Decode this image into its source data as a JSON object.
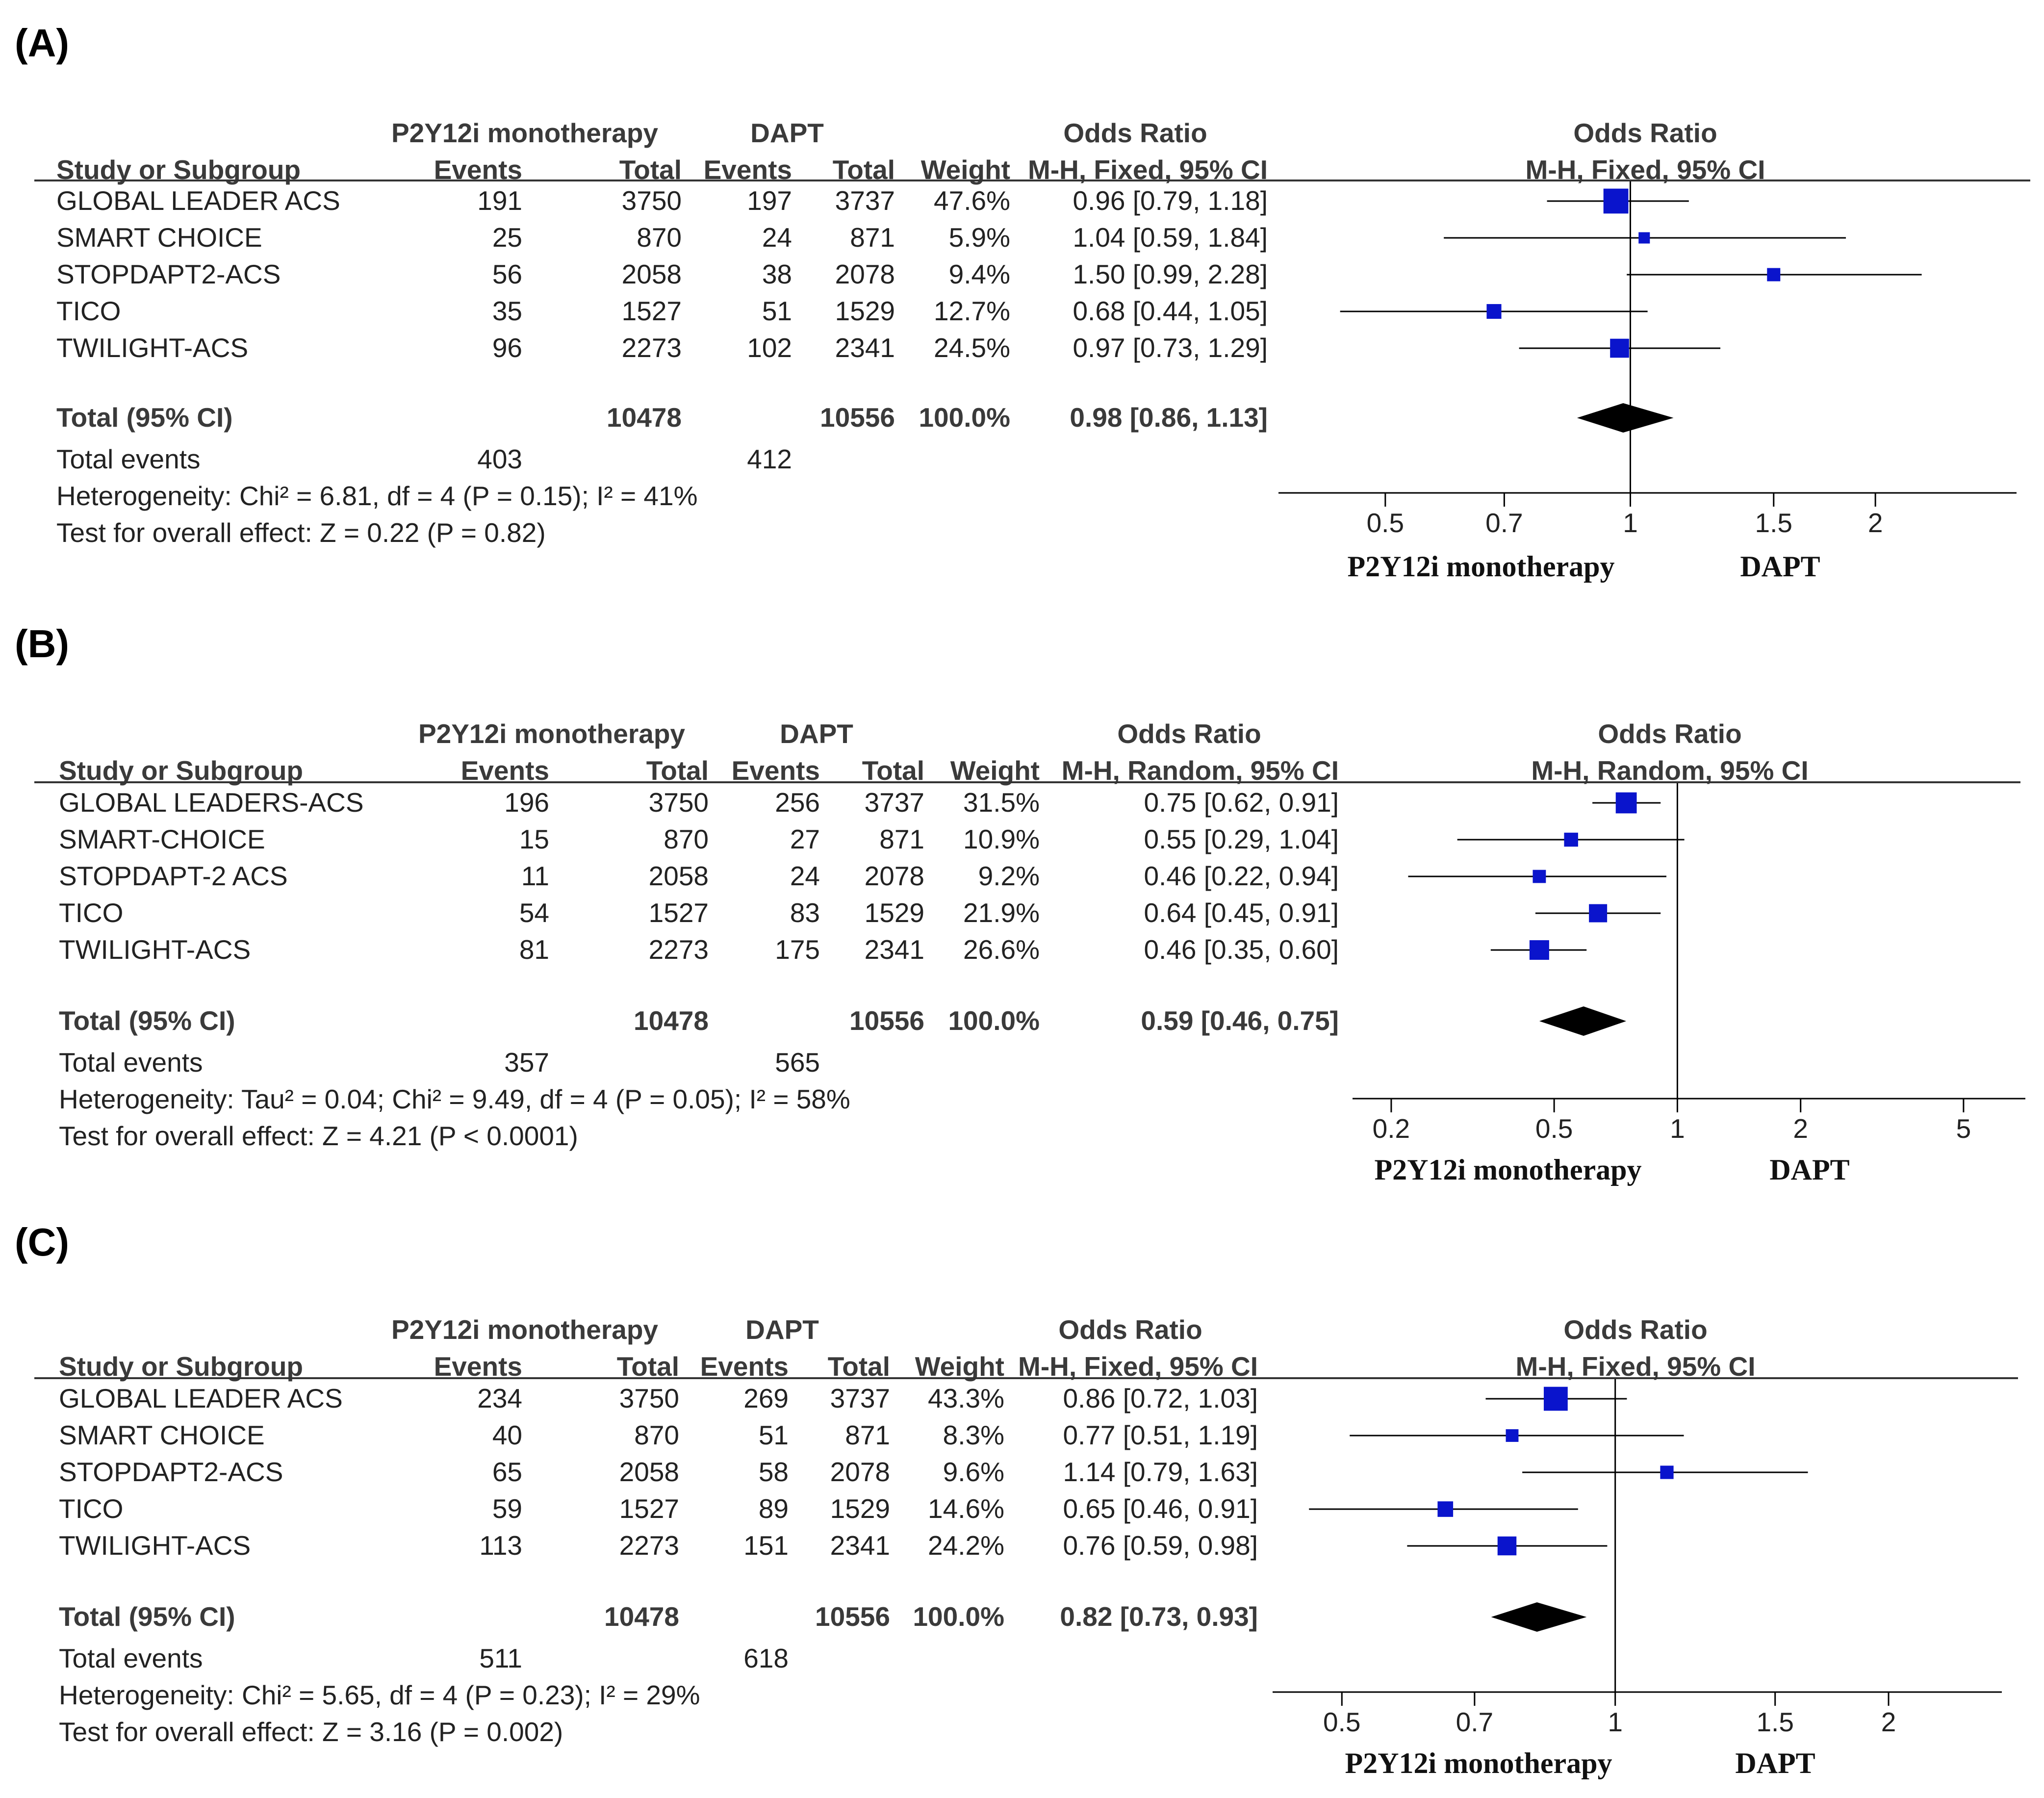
{
  "colors": {
    "marker": "#0a14cc",
    "line": "#000000",
    "text": "#222222"
  },
  "headers": {
    "study": "Study or Subgroup",
    "group1": "P2Y12i monotherapy",
    "group2": "DAPT",
    "events": "Events",
    "total": "Total",
    "weight": "Weight",
    "or": "Odds Ratio",
    "total_row": "Total (95% CI)",
    "total_events": "Total events"
  },
  "chart_data": [
    {
      "type": "forest",
      "panel_label": "(A)",
      "method": "M-H, Fixed, 95% CI",
      "scale": "log",
      "xlim": [
        0.38,
        2.9
      ],
      "ticks": [
        "0.5",
        "0.7",
        "1",
        "1.5",
        "2"
      ],
      "xlabel_left": "P2Y12i monotherapy",
      "xlabel_right": "DAPT",
      "studies": [
        {
          "name": "GLOBAL LEADER ACS",
          "e1": "191",
          "n1": "3750",
          "e2": "197",
          "n2": "3737",
          "weight": "47.6%",
          "or_text": "0.96 [0.79, 1.18]",
          "or": 0.96,
          "lo": 0.79,
          "hi": 1.18,
          "w": 47.6
        },
        {
          "name": "SMART CHOICE",
          "e1": "25",
          "n1": "870",
          "e2": "24",
          "n2": "871",
          "weight": "5.9%",
          "or_text": "1.04 [0.59, 1.84]",
          "or": 1.04,
          "lo": 0.59,
          "hi": 1.84,
          "w": 5.9
        },
        {
          "name": "STOPDAPT2-ACS",
          "e1": "56",
          "n1": "2058",
          "e2": "38",
          "n2": "2078",
          "weight": "9.4%",
          "or_text": "1.50 [0.99, 2.28]",
          "or": 1.5,
          "lo": 0.99,
          "hi": 2.28,
          "w": 9.4
        },
        {
          "name": "TICO",
          "e1": "35",
          "n1": "1527",
          "e2": "51",
          "n2": "1529",
          "weight": "12.7%",
          "or_text": "0.68 [0.44, 1.05]",
          "or": 0.68,
          "lo": 0.44,
          "hi": 1.05,
          "w": 12.7
        },
        {
          "name": "TWILIGHT-ACS",
          "e1": "96",
          "n1": "2273",
          "e2": "102",
          "n2": "2341",
          "weight": "24.5%",
          "or_text": "0.97 [0.73, 1.29]",
          "or": 0.97,
          "lo": 0.73,
          "hi": 1.29,
          "w": 24.5
        }
      ],
      "total": {
        "n1": "10478",
        "n2": "10556",
        "weight": "100.0%",
        "or_text": "0.98 [0.86, 1.13]",
        "or": 0.98,
        "lo": 0.86,
        "hi": 1.13
      },
      "total_events": {
        "e1": "403",
        "e2": "412"
      },
      "heterogeneity": "Heterogeneity: Chi² = 6.81, df = 4 (P = 0.15); I² = 41%",
      "overall": "Test for overall effect: Z = 0.22 (P = 0.82)"
    },
    {
      "type": "forest",
      "panel_label": "(B)",
      "method": "M-H, Random, 95% CI",
      "scale": "log",
      "xlim": [
        0.17,
        6.7
      ],
      "ticks": [
        "0.2",
        "0.5",
        "1",
        "2",
        "5"
      ],
      "xlabel_left": "P2Y12i monotherapy",
      "xlabel_right": "DAPT",
      "studies": [
        {
          "name": "GLOBAL LEADERS-ACS",
          "e1": "196",
          "n1": "3750",
          "e2": "256",
          "n2": "3737",
          "weight": "31.5%",
          "or_text": "0.75 [0.62, 0.91]",
          "or": 0.75,
          "lo": 0.62,
          "hi": 0.91,
          "w": 31.5
        },
        {
          "name": "SMART-CHOICE",
          "e1": "15",
          "n1": "870",
          "e2": "27",
          "n2": "871",
          "weight": "10.9%",
          "or_text": "0.55 [0.29, 1.04]",
          "or": 0.55,
          "lo": 0.29,
          "hi": 1.04,
          "w": 10.9
        },
        {
          "name": "STOPDAPT-2 ACS",
          "e1": "11",
          "n1": "2058",
          "e2": "24",
          "n2": "2078",
          "weight": "9.2%",
          "or_text": "0.46 [0.22, 0.94]",
          "or": 0.46,
          "lo": 0.22,
          "hi": 0.94,
          "w": 9.2
        },
        {
          "name": "TICO",
          "e1": "54",
          "n1": "1527",
          "e2": "83",
          "n2": "1529",
          "weight": "21.9%",
          "or_text": "0.64 [0.45, 0.91]",
          "or": 0.64,
          "lo": 0.45,
          "hi": 0.91,
          "w": 21.9
        },
        {
          "name": "TWILIGHT-ACS",
          "e1": "81",
          "n1": "2273",
          "e2": "175",
          "n2": "2341",
          "weight": "26.6%",
          "or_text": "0.46 [0.35, 0.60]",
          "or": 0.46,
          "lo": 0.35,
          "hi": 0.6,
          "w": 26.6
        }
      ],
      "total": {
        "n1": "10478",
        "n2": "10556",
        "weight": "100.0%",
        "or_text": "0.59 [0.46, 0.75]",
        "or": 0.59,
        "lo": 0.46,
        "hi": 0.75
      },
      "total_events": {
        "e1": "357",
        "e2": "565"
      },
      "heterogeneity": "Heterogeneity: Tau² = 0.04; Chi² = 9.49, df = 4 (P = 0.05); I² = 58%",
      "overall": "Test for overall effect: Z = 4.21 (P < 0.0001)"
    },
    {
      "type": "forest",
      "panel_label": "(C)",
      "method": "M-H, Fixed, 95% CI",
      "scale": "log",
      "xlim": [
        0.43,
        2.6
      ],
      "ticks": [
        "0.5",
        "0.7",
        "1",
        "1.5",
        "2"
      ],
      "xlabel_left": "P2Y12i monotherapy",
      "xlabel_right": "DAPT",
      "studies": [
        {
          "name": "GLOBAL LEADER ACS",
          "e1": "234",
          "n1": "3750",
          "e2": "269",
          "n2": "3737",
          "weight": "43.3%",
          "or_text": "0.86 [0.72, 1.03]",
          "or": 0.86,
          "lo": 0.72,
          "hi": 1.03,
          "w": 43.3
        },
        {
          "name": "SMART CHOICE",
          "e1": "40",
          "n1": "870",
          "e2": "51",
          "n2": "871",
          "weight": "8.3%",
          "or_text": "0.77 [0.51, 1.19]",
          "or": 0.77,
          "lo": 0.51,
          "hi": 1.19,
          "w": 8.3
        },
        {
          "name": "STOPDAPT2-ACS",
          "e1": "65",
          "n1": "2058",
          "e2": "58",
          "n2": "2078",
          "weight": "9.6%",
          "or_text": "1.14 [0.79, 1.63]",
          "or": 1.14,
          "lo": 0.79,
          "hi": 1.63,
          "w": 9.6
        },
        {
          "name": "TICO",
          "e1": "59",
          "n1": "1527",
          "e2": "89",
          "n2": "1529",
          "weight": "14.6%",
          "or_text": "0.65 [0.46, 0.91]",
          "or": 0.65,
          "lo": 0.46,
          "hi": 0.91,
          "w": 14.6
        },
        {
          "name": "TWILIGHT-ACS",
          "e1": "113",
          "n1": "2273",
          "e2": "151",
          "n2": "2341",
          "weight": "24.2%",
          "or_text": "0.76 [0.59, 0.98]",
          "or": 0.76,
          "lo": 0.59,
          "hi": 0.98,
          "w": 24.2
        }
      ],
      "total": {
        "n1": "10478",
        "n2": "10556",
        "weight": "100.0%",
        "or_text": "0.82 [0.73, 0.93]",
        "or": 0.82,
        "lo": 0.73,
        "hi": 0.93
      },
      "total_events": {
        "e1": "511",
        "e2": "618"
      },
      "heterogeneity": "Heterogeneity: Chi² = 5.65, df = 4 (P = 0.23); I² = 29%",
      "overall": "Test for overall effect: Z = 3.16 (P = 0.002)"
    }
  ]
}
